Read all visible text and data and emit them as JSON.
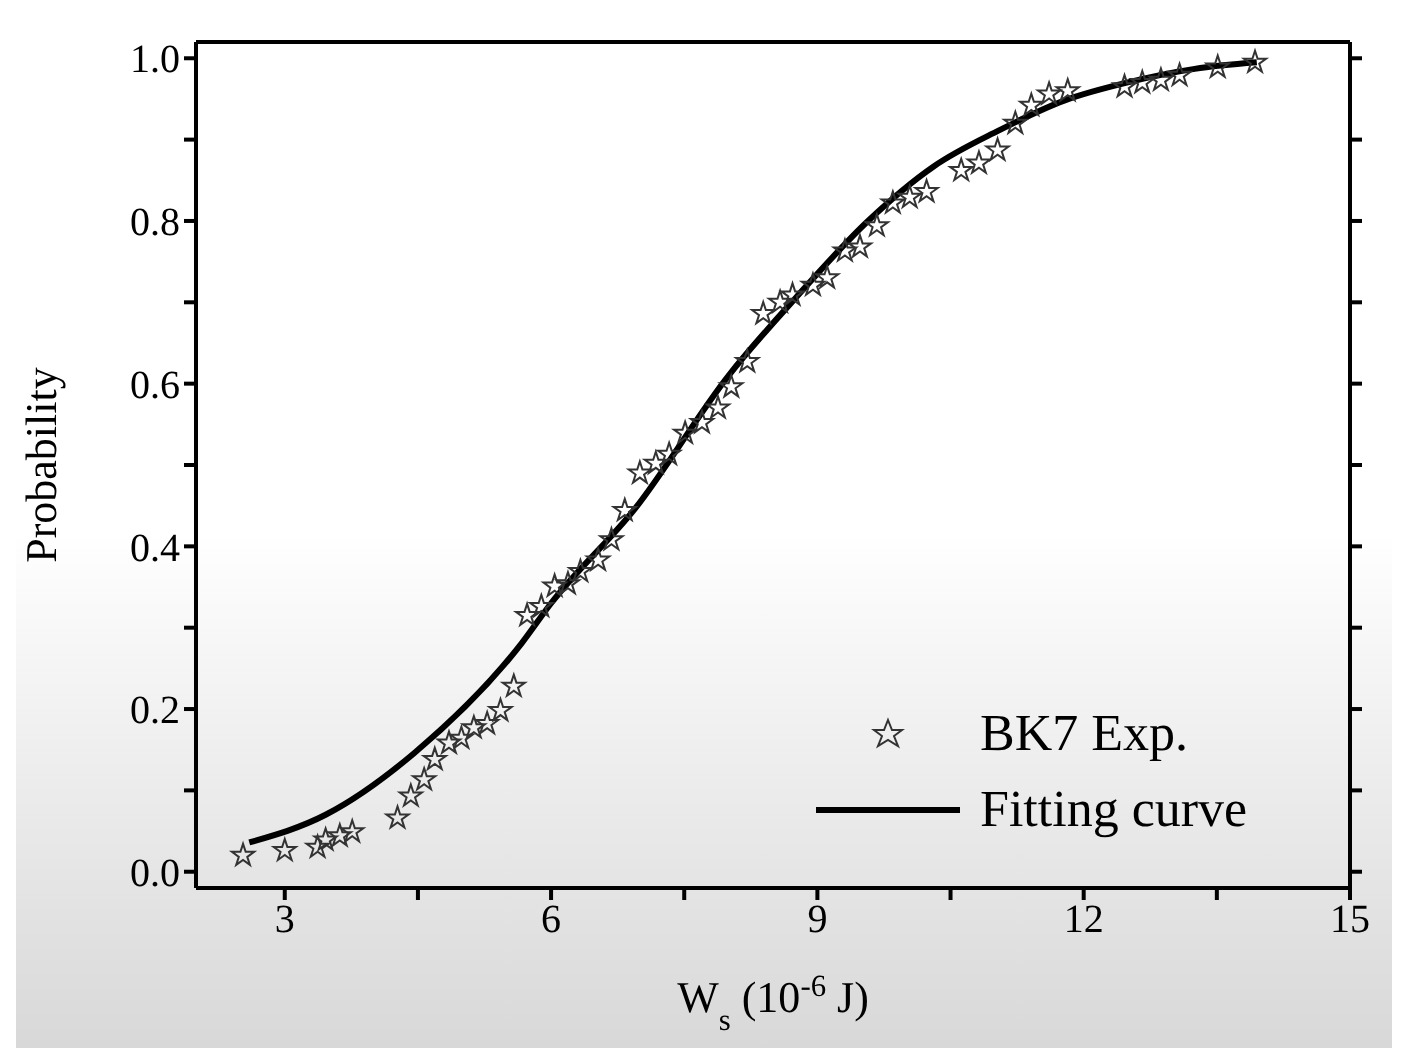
{
  "chart_data": {
    "type": "scatter",
    "xlabel": "W$_{s}$ (10$^{-6}$ J)",
    "ylabel": "Probability",
    "xlim": [
      2,
      15
    ],
    "xticks": [
      3,
      {
        "value": 4.5,
        "label": null
      },
      6,
      {
        "value": 7.5,
        "label": null
      },
      9,
      {
        "value": 10.5,
        "label": null
      },
      12,
      {
        "value": 13.5,
        "label": null
      },
      15
    ],
    "ylim": [
      -0.02,
      1.02
    ],
    "yticks": [
      {
        "value": 0,
        "label": "0.0"
      },
      {
        "value": 0.1,
        "label": null
      },
      0.2,
      {
        "value": 0.3,
        "label": null
      },
      0.4,
      {
        "value": 0.5,
        "label": null
      },
      0.6,
      {
        "value": 0.7,
        "label": null
      },
      0.8,
      {
        "value": 0.9,
        "label": null
      },
      {
        "value": 1,
        "label": "1.0"
      }
    ],
    "legend": "bottom right",
    "series": [
      {
        "name": "BK7 Exp.",
        "marker": "star",
        "color": "#333333",
        "x": [
          2.53,
          3.0,
          3.37,
          3.46,
          3.62,
          3.76,
          4.27,
          4.42,
          4.57,
          4.69,
          4.85,
          4.99,
          5.13,
          5.28,
          5.43,
          5.58,
          5.73,
          5.89,
          6.04,
          6.19,
          6.33,
          6.53,
          6.68,
          6.83,
          7.0,
          7.18,
          7.33,
          7.51,
          7.7,
          7.88,
          8.03,
          8.21,
          8.39,
          8.58,
          8.72,
          8.95,
          9.11,
          9.31,
          9.48,
          9.67,
          9.85,
          10.04,
          10.23,
          10.62,
          10.82,
          11.03,
          11.23,
          11.41,
          11.61,
          11.82,
          12.46,
          12.66,
          12.87,
          13.08,
          13.51,
          13.93
        ],
        "values": [
          0.02,
          0.026,
          0.03,
          0.039,
          0.044,
          0.049,
          0.066,
          0.093,
          0.113,
          0.138,
          0.158,
          0.164,
          0.177,
          0.182,
          0.198,
          0.228,
          0.315,
          0.326,
          0.351,
          0.354,
          0.369,
          0.383,
          0.408,
          0.444,
          0.49,
          0.502,
          0.513,
          0.539,
          0.552,
          0.57,
          0.596,
          0.627,
          0.686,
          0.7,
          0.709,
          0.721,
          0.73,
          0.763,
          0.768,
          0.794,
          0.822,
          0.829,
          0.836,
          0.862,
          0.871,
          0.887,
          0.92,
          0.942,
          0.956,
          0.96,
          0.965,
          0.97,
          0.973,
          0.979,
          0.989,
          0.995
        ]
      },
      {
        "name": "Fitting curve",
        "type": "line",
        "marker": "none",
        "line_style": "solid",
        "color": "#000000",
        "x": [
          2.6,
          3.46,
          4.46,
          5.67,
          6.0,
          6.95,
          8.0,
          8.76,
          9.57,
          10.31,
          11.04,
          11.78,
          12.52,
          13.25,
          13.95
        ],
        "values": [
          0.036,
          0.07,
          0.146,
          0.281,
          0.33,
          0.447,
          0.61,
          0.706,
          0.8,
          0.867,
          0.911,
          0.948,
          0.971,
          0.987,
          0.995
        ]
      }
    ]
  }
}
